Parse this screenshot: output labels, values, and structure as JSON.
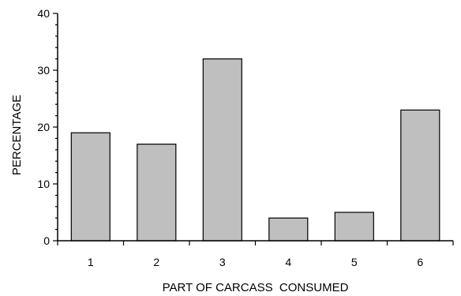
{
  "chart_data": {
    "type": "bar",
    "categories": [
      "1",
      "2",
      "3",
      "4",
      "5",
      "6"
    ],
    "values": [
      19,
      17,
      32,
      4,
      5,
      23
    ],
    "title": "",
    "xlabel": "PART OF CARCASS  CONSUMED",
    "ylabel": "PERCENTAGE",
    "ylim": [
      0,
      40
    ],
    "yticks": [
      0,
      10,
      20,
      30,
      40
    ],
    "ytick_labels": [
      "0",
      "10",
      "20",
      "30",
      "40"
    ],
    "grid": false,
    "legend": "none",
    "bar_color": "#bfbfbf",
    "bar_edge_color": "#000000"
  }
}
